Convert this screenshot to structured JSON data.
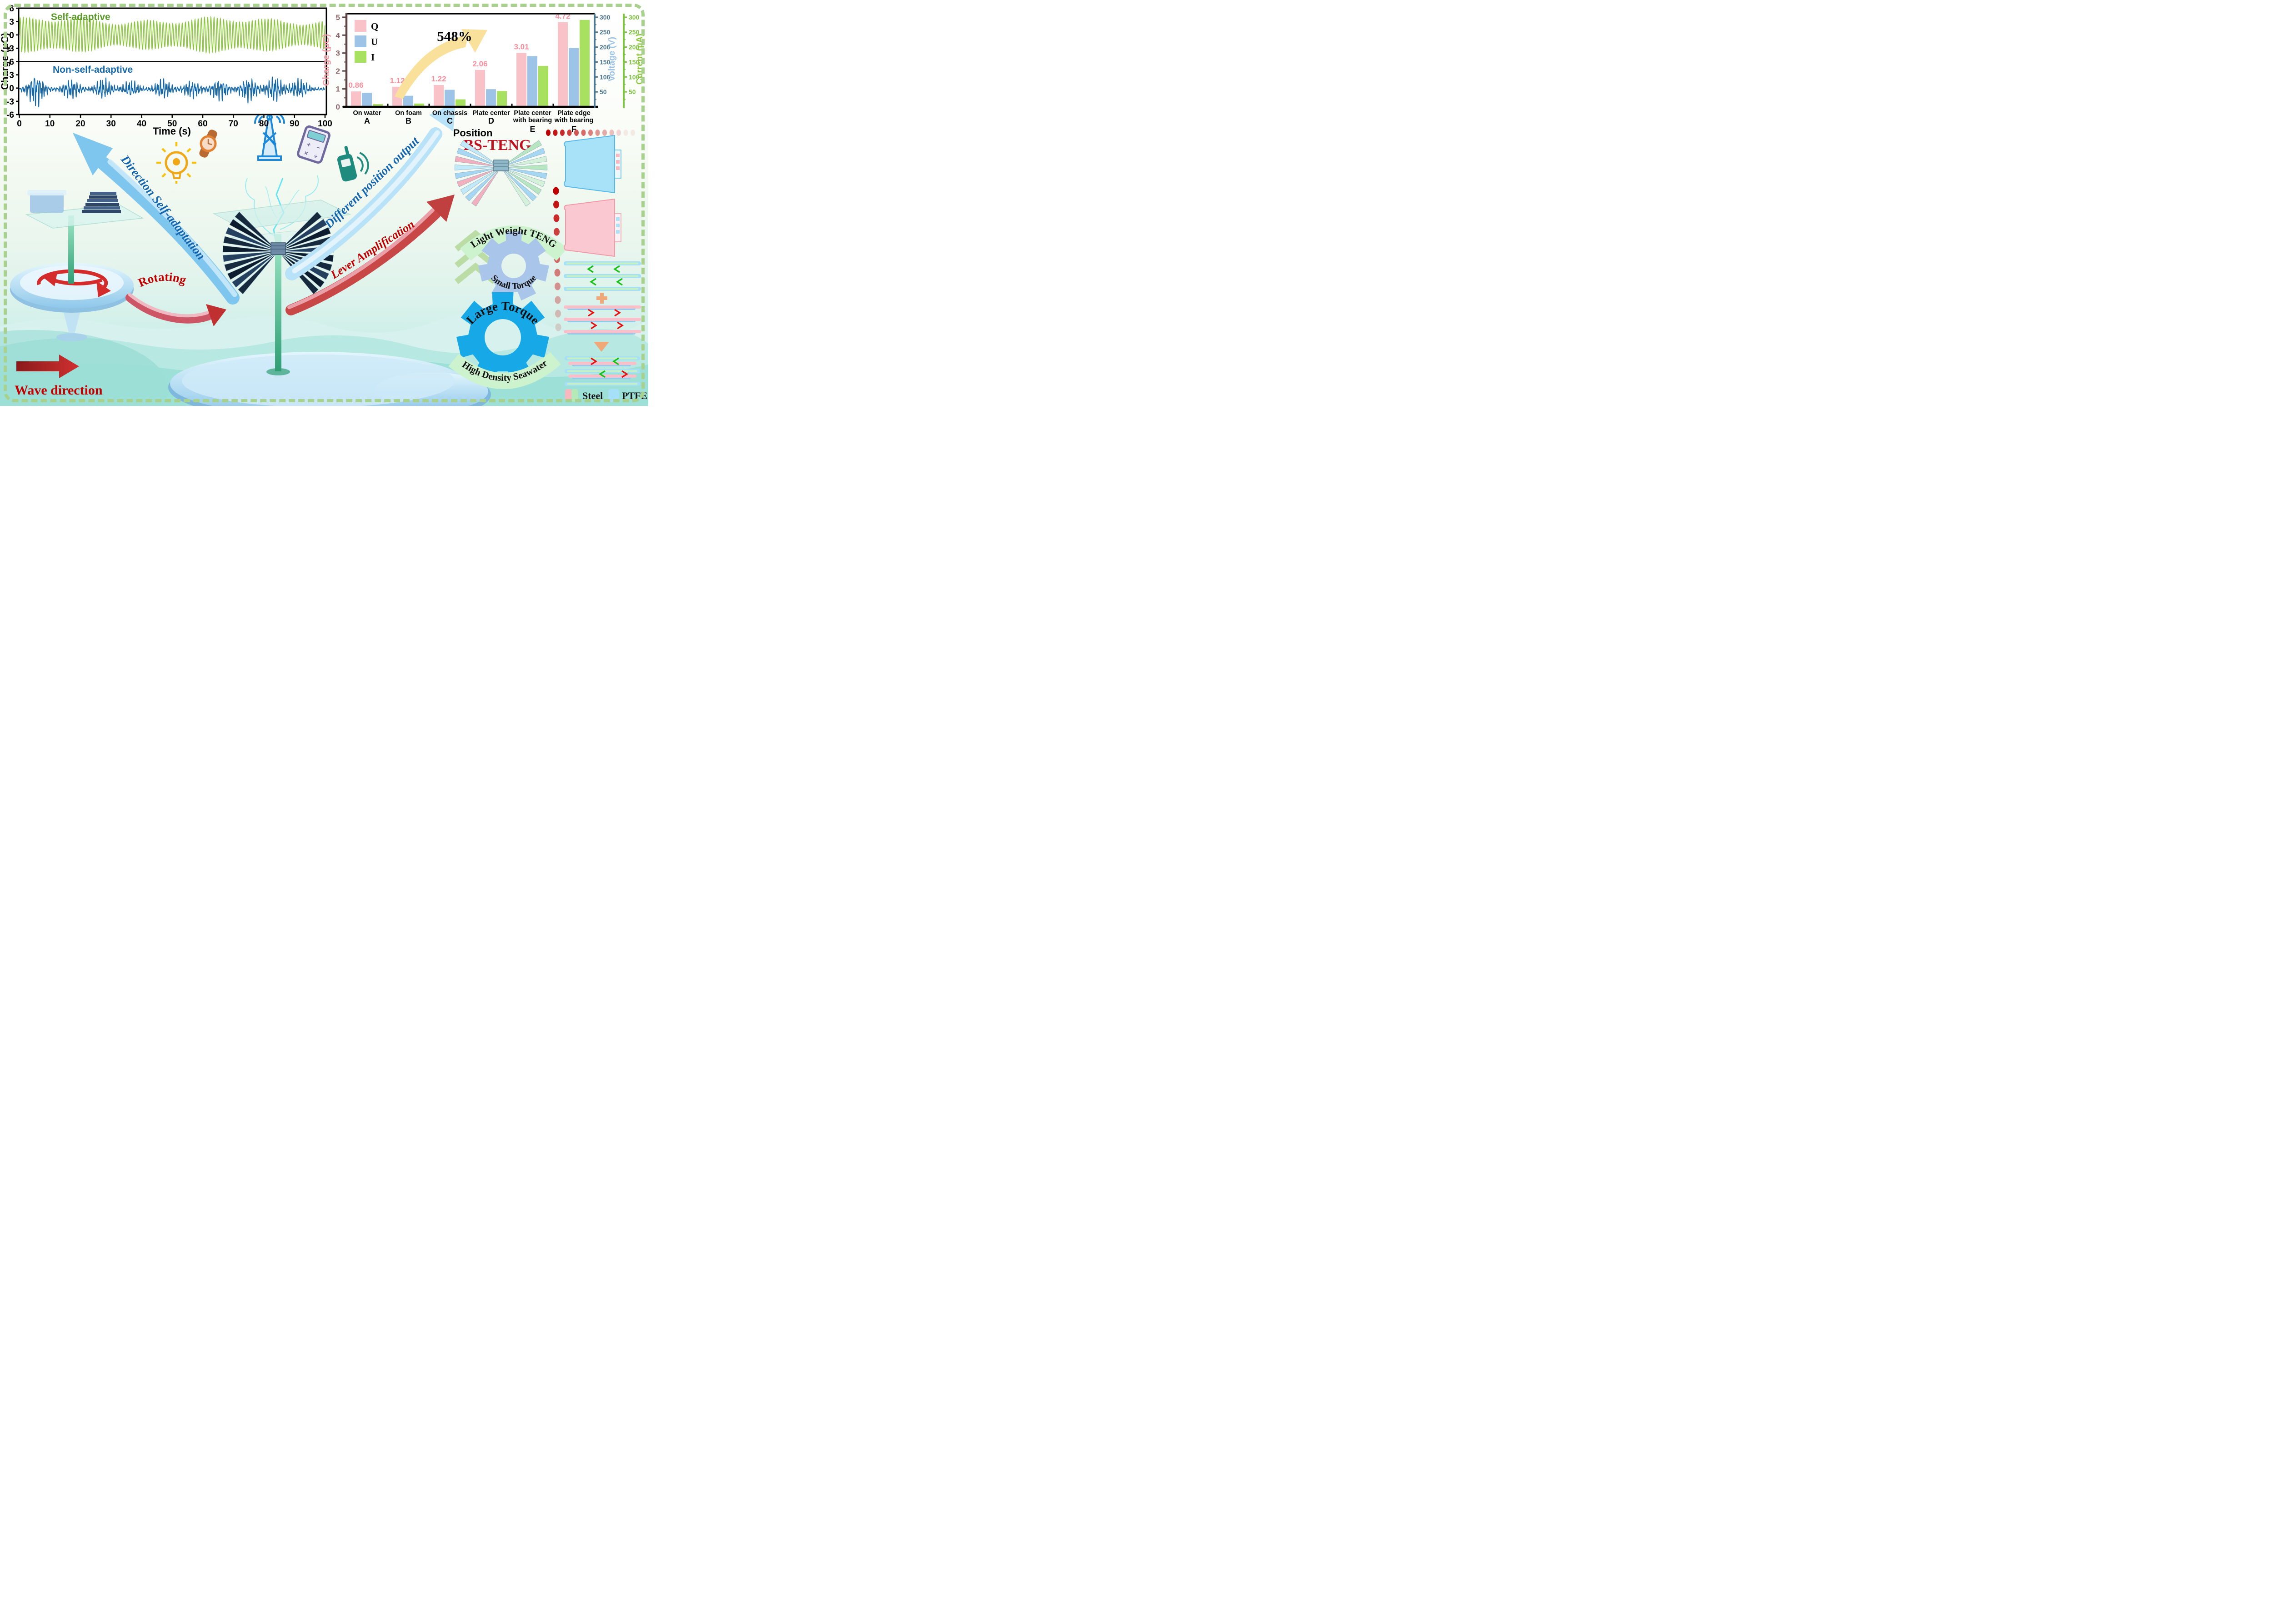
{
  "frame": {
    "border_color": "#a9d18e",
    "water_color": "#c5ebe7"
  },
  "chart_data": [
    {
      "id": "charge_time_series",
      "type": "line",
      "title": "",
      "xlabel": "Time (s)",
      "ylabel": "Charge (μC)",
      "xlim": [
        0,
        100
      ],
      "x_ticks": [
        0,
        10,
        20,
        30,
        40,
        50,
        60,
        70,
        80,
        90,
        100
      ],
      "grid": false,
      "panels": [
        {
          "name": "Self-adaptive",
          "color": "#8CC63F",
          "label_color": "#5B9B28",
          "ylim": [
            -6,
            6
          ],
          "y_ticks": [
            6,
            3,
            0,
            -3,
            -6
          ],
          "behavior": "continuous ~1 Hz oscillation, amplitude 2.2-4.1 uC",
          "synth": {
            "period": 1.04,
            "amp_base": 3.1,
            "amp_var1": 0.55,
            "amp_var2": 0.4
          }
        },
        {
          "name": "Non-self-adaptive",
          "color": "#1668A8",
          "label_color": "#1668A8",
          "ylim": [
            -6,
            6
          ],
          "y_ticks": [
            3,
            0,
            -3,
            -6
          ],
          "behavior": "irregular bursts, peaks up to +/-4 uC",
          "synth": {
            "base": 0.25,
            "sigma": 2.0,
            "centers": [
              5.5,
              17,
              27.5,
              36.5,
              47,
              56.5,
              65.5,
              75,
              83.5,
              91.5
            ],
            "amps": [
              2.6,
              1.5,
              1.6,
              1.2,
              1.5,
              1.3,
              1.7,
              1.9,
              2.0,
              1.5
            ]
          }
        }
      ]
    },
    {
      "id": "position_output_bars",
      "type": "bar",
      "xlabel": "Position",
      "categories": [
        "On water",
        "On foam",
        "On chassis",
        "Plate center",
        "Plate center|with bearing",
        "Plate edge|with bearing"
      ],
      "category_letters": [
        "A",
        "B",
        "C",
        "D",
        "E",
        "F"
      ],
      "series": [
        {
          "name": "Q",
          "axis": "left",
          "unit": "μC",
          "color": "#F9C2C9",
          "values": [
            0.86,
            1.12,
            1.22,
            2.06,
            3.01,
            4.72
          ]
        },
        {
          "name": "U",
          "axis": "voltage",
          "unit": "V",
          "color": "#9DC3E6",
          "values": [
            47,
            37,
            57,
            59,
            170,
            197
          ]
        },
        {
          "name": "I",
          "axis": "current",
          "unit": "μA",
          "color": "#A8E05F",
          "values": [
            9,
            11,
            25,
            53,
            137,
            291
          ]
        }
      ],
      "value_labels": [
        "0.86",
        "1.12",
        "1.22",
        "2.06",
        "3.01",
        "4.72"
      ],
      "value_label_color": "#F88E9B",
      "left_axis": {
        "label": "Charge (μC)",
        "ticks": [
          0,
          1,
          2,
          3,
          4,
          5
        ],
        "range": [
          0,
          5.2
        ],
        "label_color": "#F59CA5",
        "tick_color": "#8a6468"
      },
      "voltage_axis": {
        "label": "Voltage (V)",
        "ticks": [
          50,
          100,
          150,
          200,
          250,
          300
        ],
        "range": [
          0,
          312
        ],
        "label_color": "#9DC3E6",
        "tick_color": "#4E7991"
      },
      "current_axis": {
        "label": "Current (μA)",
        "ticks": [
          50,
          100,
          150,
          200,
          250,
          300
        ],
        "range": [
          0,
          312
        ],
        "label_color": "#8CC63F",
        "tick_color": "#7DC242"
      },
      "annotation": {
        "text": "548%",
        "arrow_color": "#FAE19B",
        "text_color": "#000000"
      },
      "legend_position": "top-left"
    }
  ],
  "labels": {
    "direction_self_adaptation": "Direction Self-adaptation",
    "different_position_output": "Different position output",
    "lever_amplification": "Lever Amplification",
    "rotating": "Rotating",
    "wave_direction": "Wave direction",
    "bs_teng": "BS-TENG",
    "light_weight_teng": "Light Weight TENG",
    "small_torque": "Small Torque",
    "large_torque": "Large Torque",
    "high_density_seawater": "High Density Seawater"
  },
  "materials_legend": {
    "steel_label": "Steel",
    "steel_colors": [
      "#F9B8BE",
      "#B5EAB8"
    ],
    "ptfe_label": "PTFE",
    "ptfe_color": "#A5E0F8"
  },
  "accent_colors": {
    "red_text": "#C00000",
    "blue_text": "#1464AE",
    "blue_arrow": "#7FC6EE",
    "pale_blue_arrow": "#B8E2F8",
    "red_arrow": "#C84848",
    "small_gear": "#A9C5E9",
    "large_gear": "#17A8E8",
    "banner_green": "#CDF2CE",
    "dot_red": "#C00000",
    "chevron_green": "#BCDCA6"
  },
  "icons": [
    "lightbulb-gear-icon",
    "wristwatch-icon",
    "radio-tower-icon",
    "calculator-icon",
    "walkie-talkie-icon",
    "lightning-icon",
    "rotation-arrow-icon"
  ]
}
